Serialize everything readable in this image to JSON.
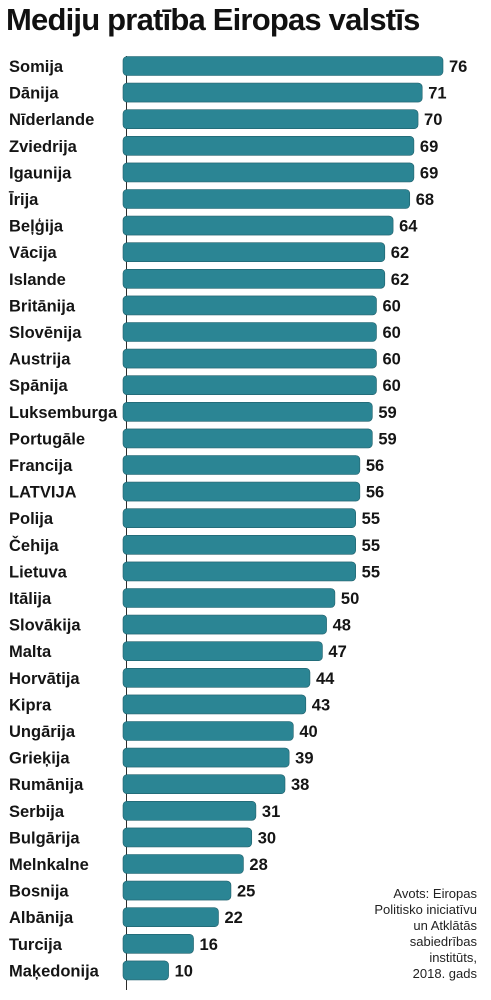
{
  "chart_data": {
    "type": "bar",
    "orientation": "horizontal",
    "title": "Mediju pratība Eiropas valstīs",
    "bar_color": "#2b8594",
    "categories": [
      "Somija",
      "Dānija",
      "Nīderlande",
      "Zviedrija",
      "Igaunija",
      "Īrija",
      "Beļģija",
      "Vācija",
      "Islande",
      "Britānija",
      "Slovēnija",
      "Austrija",
      "Spānija",
      "Luksemburga",
      "Portugāle",
      "Francija",
      "LATVIJA",
      "Polija",
      "Čehija",
      "Lietuva",
      "Itālija",
      "Slovākija",
      "Malta",
      "Horvātija",
      "Kipra",
      "Ungārija",
      "Grieķija",
      "Rumānija",
      "Serbija",
      "Bulgārija",
      "Melnkalne",
      "Bosnija",
      "Albānija",
      "Turcija",
      "Maķedonija"
    ],
    "values": [
      76,
      71,
      70,
      69,
      69,
      68,
      64,
      62,
      62,
      60,
      60,
      60,
      60,
      59,
      59,
      56,
      56,
      55,
      55,
      55,
      50,
      48,
      47,
      44,
      43,
      40,
      39,
      38,
      31,
      30,
      28,
      25,
      22,
      16,
      10
    ],
    "xlim": [
      0,
      76
    ]
  },
  "source": {
    "lines": [
      "Avots: Eiropas",
      "Politisko iniciatīvu",
      "un Atklātās",
      "sabiedrības",
      "institūts,",
      "2018. gads"
    ]
  }
}
